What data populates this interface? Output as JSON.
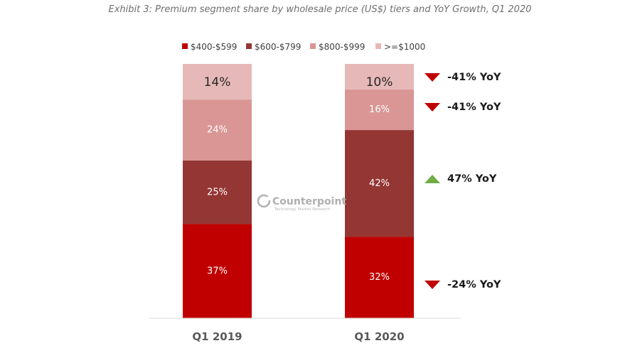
{
  "chart_data": {
    "type": "bar",
    "stacked": true,
    "title": "Exhibit 3: Premium segment share by wholesale price (US$) tiers and YoY Growth, Q1 2020",
    "categories": [
      "Q1 2019",
      "Q1 2020"
    ],
    "series": [
      {
        "name": "$400-$599",
        "values": [
          37,
          32
        ],
        "labels": [
          "37%",
          "32%"
        ],
        "color": "#c00000"
      },
      {
        "name": "$600-$799",
        "values": [
          25,
          42
        ],
        "labels": [
          "25%",
          "42%"
        ],
        "color": "#943634"
      },
      {
        "name": "$800-$999",
        "values": [
          24,
          16
        ],
        "labels": [
          "24%",
          "16%"
        ],
        "color": "#d99694"
      },
      {
        "name": ">=$1000",
        "values": [
          14,
          10
        ],
        "labels": [
          "14%",
          "10%"
        ],
        "color": "#e6b9b8"
      }
    ],
    "ylim": [
      0,
      100
    ],
    "legend_position": "top",
    "grid": false,
    "annotations": [
      {
        "series": ">=$1000",
        "text": "-41% YoY",
        "direction": "down",
        "color": "#c00000"
      },
      {
        "series": "$800-$999",
        "text": "-41% YoY",
        "direction": "down",
        "color": "#c00000"
      },
      {
        "series": "$600-$799",
        "text": "47% YoY",
        "direction": "up",
        "color": "#70ad47"
      },
      {
        "series": "$400-$599",
        "text": "-24% YoY",
        "direction": "down",
        "color": "#c00000"
      }
    ]
  },
  "watermark": {
    "name": "Counterpoint",
    "subtitle": "Technology Market Research"
  }
}
